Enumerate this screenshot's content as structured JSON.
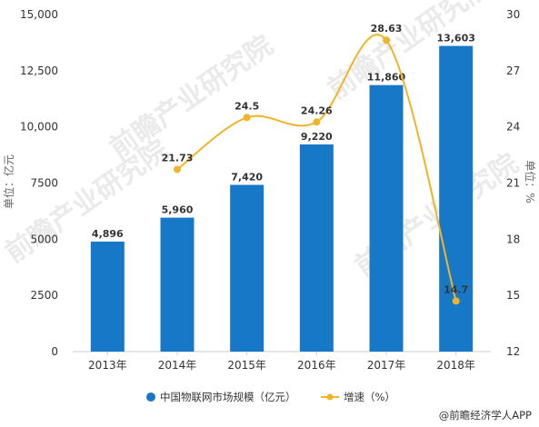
{
  "chart_data": {
    "type": "bar",
    "categories": [
      "2013年",
      "2014年",
      "2015年",
      "2016年",
      "2017年",
      "2018年"
    ],
    "series": [
      {
        "name": "中国物联网市场规模（亿元）",
        "type": "bar",
        "axis": "left",
        "values": [
          4896,
          5960,
          7420,
          9220,
          11860,
          13603
        ],
        "labels": [
          "4,896",
          "5,960",
          "7,420",
          "9,220",
          "11,860",
          "13,603"
        ],
        "color": "#1878c8"
      },
      {
        "name": "增速（%）",
        "type": "line",
        "axis": "right",
        "values": [
          null,
          21.73,
          24.5,
          24.26,
          28.63,
          14.7
        ],
        "labels": [
          "",
          "21.73",
          "24.5",
          "24.26",
          "28.63",
          "14.7"
        ],
        "color": "#f0b429"
      }
    ],
    "ylabel": "单位：亿元",
    "y2label": "单位：%",
    "ylim": [
      0,
      15000
    ],
    "yticks": [
      0,
      2500,
      5000,
      7500,
      10000,
      12500,
      15000
    ],
    "ytick_labels": [
      "0",
      "2500",
      "5000",
      "7500",
      "10,000",
      "12,500",
      "15,000"
    ],
    "y2lim": [
      12,
      30
    ],
    "y2ticks": [
      12,
      15,
      18,
      21,
      24,
      27,
      30
    ],
    "grid": false,
    "legend_position": "bottom"
  },
  "watermark": "前瞻产业研究院",
  "source": "@前瞻经济学人APP"
}
